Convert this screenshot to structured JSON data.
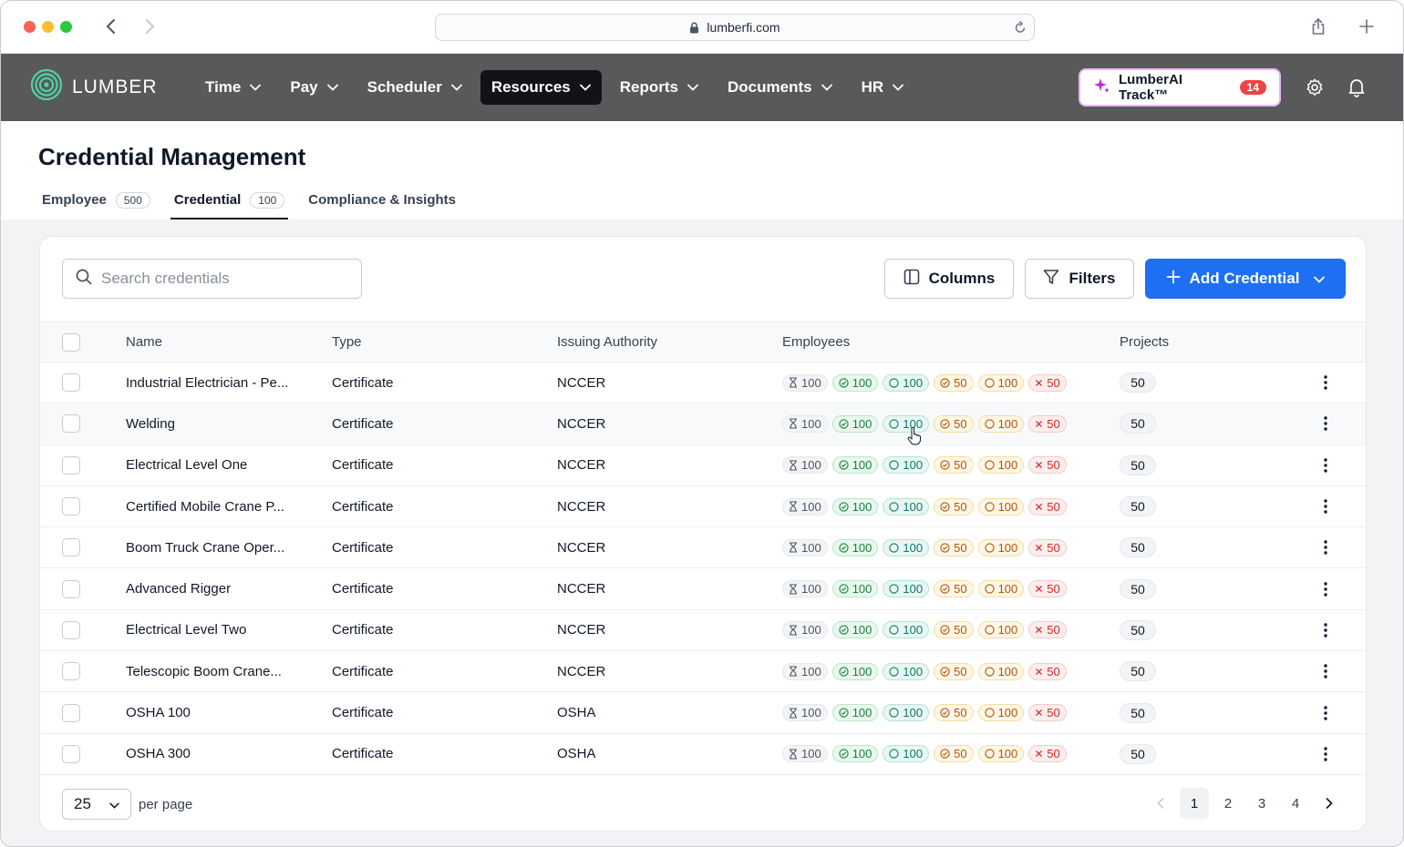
{
  "browser": {
    "url": "lumberfi.com"
  },
  "nav": {
    "brand": "LUMBER",
    "menu": [
      {
        "label": "Time"
      },
      {
        "label": "Pay"
      },
      {
        "label": "Scheduler"
      },
      {
        "label": "Resources",
        "active": true
      },
      {
        "label": "Reports"
      },
      {
        "label": "Documents"
      },
      {
        "label": "HR"
      }
    ],
    "ai_button": {
      "label": "LumberAI Track™",
      "badge": "14"
    }
  },
  "page": {
    "title": "Credential Management",
    "tabs": [
      {
        "label": "Employee",
        "count": "500"
      },
      {
        "label": "Credential",
        "count": "100",
        "active": true
      },
      {
        "label": "Compliance & Insights",
        "count": ""
      }
    ]
  },
  "toolbar": {
    "search_placeholder": "Search credentials",
    "columns_label": "Columns",
    "filters_label": "Filters",
    "add_label": "Add Credential"
  },
  "table": {
    "headers": {
      "name": "Name",
      "type": "Type",
      "authority": "Issuing Authority",
      "employees": "Employees",
      "projects": "Projects"
    },
    "rows": [
      {
        "name": "Industrial Electrician - Pe...",
        "type": "Certificate",
        "authority": "NCCER",
        "emp": [
          "100",
          "100",
          "100",
          "50",
          "100",
          "50"
        ],
        "projects": "50"
      },
      {
        "name": "Welding",
        "type": "Certificate",
        "authority": "NCCER",
        "emp": [
          "100",
          "100",
          "100",
          "50",
          "100",
          "50"
        ],
        "projects": "50"
      },
      {
        "name": "Electrical Level One",
        "type": "Certificate",
        "authority": "NCCER",
        "emp": [
          "100",
          "100",
          "100",
          "50",
          "100",
          "50"
        ],
        "projects": "50"
      },
      {
        "name": "Certified Mobile Crane P...",
        "type": "Certificate",
        "authority": "NCCER",
        "emp": [
          "100",
          "100",
          "100",
          "50",
          "100",
          "50"
        ],
        "projects": "50"
      },
      {
        "name": "Boom Truck Crane Oper...",
        "type": "Certificate",
        "authority": "NCCER",
        "emp": [
          "100",
          "100",
          "100",
          "50",
          "100",
          "50"
        ],
        "projects": "50"
      },
      {
        "name": "Advanced Rigger",
        "type": "Certificate",
        "authority": "NCCER",
        "emp": [
          "100",
          "100",
          "100",
          "50",
          "100",
          "50"
        ],
        "projects": "50"
      },
      {
        "name": "Electrical Level Two",
        "type": "Certificate",
        "authority": "NCCER",
        "emp": [
          "100",
          "100",
          "100",
          "50",
          "100",
          "50"
        ],
        "projects": "50"
      },
      {
        "name": "Telescopic Boom Crane...",
        "type": "Certificate",
        "authority": "NCCER",
        "emp": [
          "100",
          "100",
          "100",
          "50",
          "100",
          "50"
        ],
        "projects": "50"
      },
      {
        "name": "OSHA 100",
        "type": "Certificate",
        "authority": "OSHA",
        "emp": [
          "100",
          "100",
          "100",
          "50",
          "100",
          "50"
        ],
        "projects": "50"
      },
      {
        "name": "OSHA 300",
        "type": "Certificate",
        "authority": "OSHA",
        "emp": [
          "100",
          "100",
          "100",
          "50",
          "100",
          "50"
        ],
        "projects": "50"
      }
    ]
  },
  "pagination": {
    "per_page_value": "25",
    "per_page_label": "per page",
    "pages": [
      "1",
      "2",
      "3",
      "4"
    ],
    "current_page": "1"
  },
  "colors": {
    "primary": "#1f6ff2",
    "nav_bg": "#58595b",
    "active_menu": "#111318"
  }
}
